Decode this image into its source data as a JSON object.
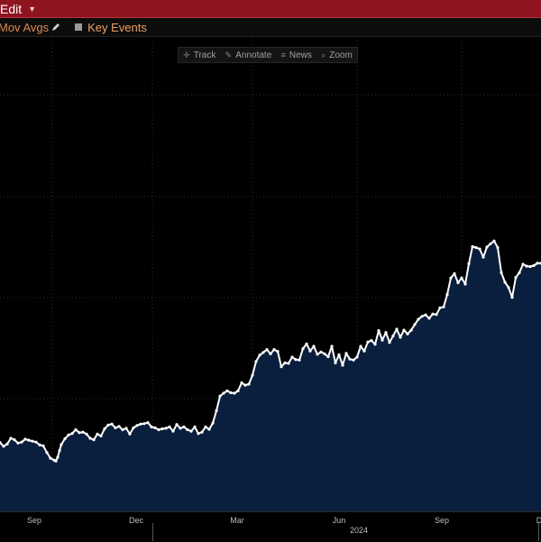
{
  "topbar": {
    "edit_label": "Edit",
    "caret_icon": "caret-down-icon"
  },
  "toolbar": {
    "mov_avgs_label": "Mov Avgs",
    "mov_avgs_icon": "pencil-icon",
    "key_events_label": "Key Events",
    "key_events_icon": "checkbox-icon"
  },
  "chart_tools": [
    {
      "label": "Track",
      "icon": "crosshair-icon"
    },
    {
      "label": "Annotate",
      "icon": "pencil-icon"
    },
    {
      "label": "News",
      "icon": "list-icon"
    },
    {
      "label": "Zoom",
      "icon": "magnifier-icon"
    }
  ],
  "colors": {
    "fill": "#0a1f3d",
    "line": "#ffffff",
    "grid": "#2e2e2e",
    "accent": "#8e1420",
    "toolbar_text": "#e08a50"
  },
  "chart_data": {
    "type": "area",
    "x_ticks": [
      "Sep",
      "Dec",
      "Mar",
      "Jun",
      "Sep",
      "D"
    ],
    "year_label": "2024",
    "y_tick_labels": [],
    "series": [
      {
        "x": [
          0,
          4,
          8,
          12,
          16,
          20,
          24,
          28,
          32,
          36,
          40,
          44,
          48,
          52,
          56,
          60,
          62,
          64,
          66,
          68,
          72,
          76,
          80,
          84,
          88,
          92,
          96,
          100,
          104,
          108,
          112,
          116,
          120,
          124,
          128,
          132,
          136,
          140,
          144,
          148,
          152,
          156,
          160,
          164,
          168,
          172,
          176,
          180,
          184,
          188,
          192,
          196,
          200,
          204,
          208,
          212,
          216,
          220,
          224,
          228,
          232,
          236,
          240,
          244,
          248,
          252,
          256,
          260,
          264,
          268,
          272,
          276,
          280,
          284,
          288,
          292,
          296,
          300,
          304,
          308,
          312,
          316,
          320,
          324,
          328,
          332,
          336,
          340,
          344,
          348,
          352,
          356,
          360,
          364,
          368,
          372,
          376,
          380,
          384,
          388,
          392,
          396,
          400,
          404,
          408,
          412,
          416,
          420,
          424,
          428,
          432,
          436,
          440,
          444,
          448,
          452,
          456,
          460,
          464,
          468,
          472,
          476,
          480,
          484,
          488,
          492,
          496,
          500,
          504,
          508,
          512,
          516,
          520,
          524,
          528,
          532,
          536,
          540,
          544,
          548,
          552,
          556,
          560,
          564,
          568,
          572,
          576,
          580,
          584,
          588,
          592,
          596,
          600
        ],
        "y": [
          14.5,
          13.7,
          14.2,
          15.4,
          15.1,
          14.4,
          14.6,
          15.2,
          15.0,
          14.8,
          14.6,
          14.0,
          13.8,
          12.4,
          11.2,
          10.8,
          10.6,
          11.4,
          12.8,
          14.1,
          15.3,
          16.1,
          16.4,
          17.2,
          16.6,
          16.7,
          16.3,
          15.4,
          15.1,
          16.3,
          15.9,
          17.4,
          18.2,
          18.4,
          17.6,
          17.9,
          17.2,
          17.5,
          16.3,
          17.6,
          18.1,
          18.4,
          18.5,
          18.7,
          17.8,
          17.6,
          17.2,
          17.4,
          17.5,
          17.8,
          16.9,
          18.3,
          17.5,
          17.8,
          17.2,
          16.9,
          17.8,
          16.4,
          16.7,
          17.8,
          17.3,
          18.6,
          21.2,
          24.3,
          24.9,
          25.4,
          25.0,
          24.9,
          25.4,
          27.1,
          26.6,
          26.8,
          28.7,
          31.6,
          32.9,
          33.5,
          34.1,
          33.2,
          34.1,
          33.7,
          30.5,
          31.3,
          31.2,
          32.5,
          32.0,
          31.9,
          34.3,
          35.3,
          33.8,
          34.8,
          33.1,
          33.6,
          33.2,
          32.6,
          34.8,
          31.3,
          33.0,
          30.8,
          33.3,
          32.1,
          31.9,
          32.5,
          34.8,
          33.8,
          35.7,
          36.0,
          35.2,
          38.1,
          36.1,
          37.7,
          35.6,
          37.0,
          38.4,
          36.7,
          38.2,
          37.4,
          38.2,
          39.4,
          40.5,
          41.1,
          41.4,
          40.7,
          41.6,
          41.5,
          42.9,
          43.1,
          45.7,
          49.2,
          50.1,
          48.2,
          49.2,
          47.9,
          52.2,
          55.8,
          55.6,
          55.3,
          53.6,
          55.7,
          56.4,
          57.0,
          55.6,
          50.3,
          48.3,
          47.2,
          45.1,
          49.3,
          50.3,
          52.1,
          51.7,
          51.6,
          51.8,
          52.3,
          52.3
        ]
      }
    ],
    "grid": true
  }
}
